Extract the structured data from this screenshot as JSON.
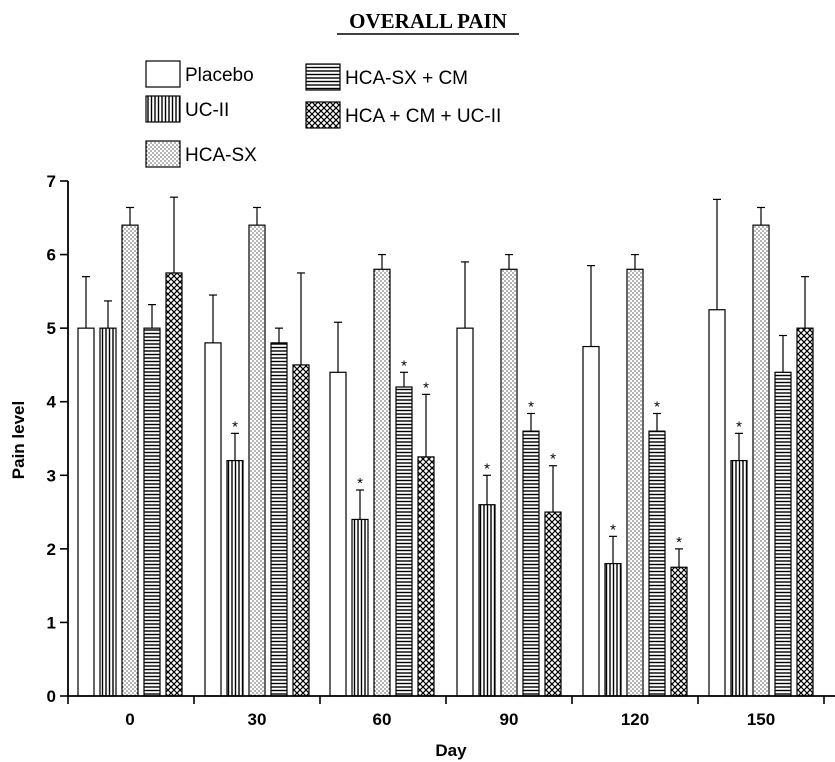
{
  "chart_data": {
    "type": "bar",
    "title": "OVERALL PAIN",
    "xlabel": "Day",
    "ylabel": "Pain level",
    "ylim": [
      0,
      7
    ],
    "yticks": [
      "0",
      "1",
      "2",
      "3",
      "4",
      "5",
      "6",
      "7"
    ],
    "categories": [
      "0",
      "30",
      "60",
      "90",
      "120",
      "150"
    ],
    "grid": false,
    "legend_position": "top-left",
    "series": [
      {
        "name": "Placebo",
        "pattern": "open",
        "values": [
          5.0,
          4.8,
          4.4,
          5.0,
          4.75,
          5.25
        ],
        "errors": [
          0.7,
          0.65,
          0.68,
          0.9,
          1.1,
          1.5
        ],
        "significant": [
          false,
          false,
          false,
          false,
          false,
          false
        ]
      },
      {
        "name": "UC-II",
        "pattern": "vertical-stripes",
        "values": [
          5.0,
          3.2,
          2.4,
          2.6,
          1.8,
          3.2
        ],
        "errors": [
          0.37,
          0.37,
          0.4,
          0.4,
          0.37,
          0.37
        ],
        "significant": [
          false,
          true,
          true,
          true,
          true,
          true
        ]
      },
      {
        "name": "HCA-SX",
        "pattern": "dots",
        "values": [
          6.4,
          6.4,
          5.8,
          5.8,
          5.8,
          6.4
        ],
        "errors": [
          0.24,
          0.24,
          0.2,
          0.2,
          0.2,
          0.24
        ],
        "significant": [
          false,
          false,
          false,
          false,
          false,
          false
        ]
      },
      {
        "name": "HCA-SX + CM",
        "pattern": "horizontal-stripes",
        "values": [
          5.0,
          4.8,
          4.2,
          3.6,
          3.6,
          4.4
        ],
        "errors": [
          0.32,
          0.2,
          0.2,
          0.24,
          0.24,
          0.5
        ],
        "significant": [
          false,
          false,
          true,
          true,
          true,
          false
        ]
      },
      {
        "name": "HCA + CM + UC-II",
        "pattern": "crosshatch",
        "values": [
          5.75,
          4.5,
          3.25,
          2.5,
          1.75,
          5.0
        ],
        "errors": [
          1.03,
          1.25,
          0.85,
          0.63,
          0.25,
          0.7
        ],
        "significant": [
          false,
          false,
          true,
          true,
          true,
          false
        ]
      }
    ],
    "significance_marker": "*"
  }
}
